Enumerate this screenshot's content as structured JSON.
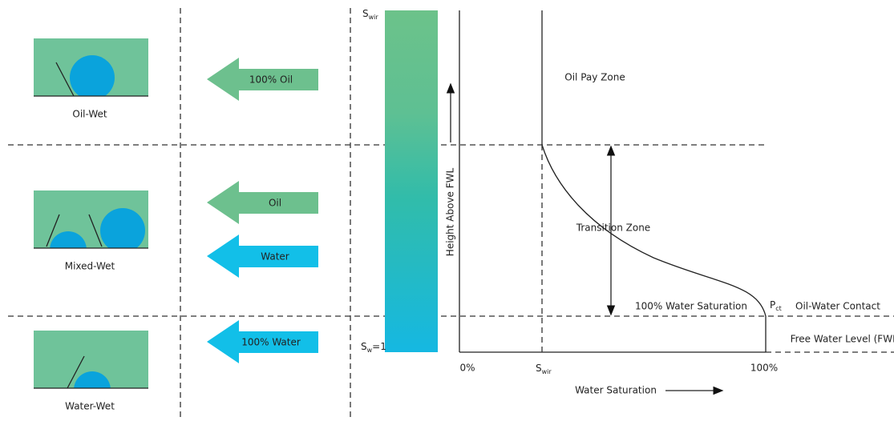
{
  "panels": [
    {
      "label": "Oil-Wet"
    },
    {
      "label": "Mixed-Wet"
    },
    {
      "label": "Water-Wet"
    }
  ],
  "arrows": [
    {
      "label": "100% Oil"
    },
    {
      "label": "Oil"
    },
    {
      "label": "Water"
    },
    {
      "label": "100% Water"
    }
  ],
  "gradient_bar": {
    "top_label": {
      "symbol": "S",
      "subscript": "wir"
    },
    "bottom_label": {
      "symbol": "S",
      "subscript": "w",
      "suffix": "=1"
    }
  },
  "y_axis_label": "Height Above FWL",
  "zones": {
    "oil_pay": "Oil Pay Zone",
    "transition": "Transition Zone",
    "water_saturation": "100% Water Saturation",
    "pct": {
      "symbol": "P",
      "subscript": "ct"
    },
    "contact": "Oil-Water Contact",
    "fwl": "Free Water Level (FWL)"
  },
  "x_axis": {
    "start": "0%",
    "swir": {
      "symbol": "S",
      "subscript": "wir"
    },
    "end": "100%",
    "title": "Water Saturation"
  }
}
